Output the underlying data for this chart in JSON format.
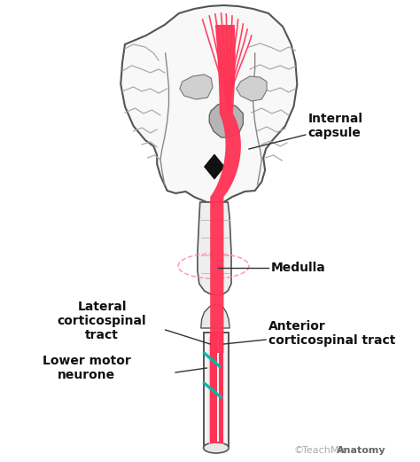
{
  "bg_color": "#ffffff",
  "fig_width": 4.74,
  "fig_height": 5.21,
  "dpi": 100,
  "labels": {
    "internal_capsule": "Internal\ncapsule",
    "medulla": "Medulla",
    "lateral_corticospinal": "Lateral\ncorticospinal\ntract",
    "anterior_corticospinal": "Anterior\ncorticospinal tract",
    "lower_motor_neurone": "Lower motor\nneurone"
  },
  "colors": {
    "red_tract": "#FF3355",
    "outline": "#555555",
    "brain_fill": "#f8f8f8",
    "sulci": "#aaaaaa",
    "teal": "#00BBAA",
    "dashed_pink": "#FF88AA",
    "watermark_gray": "#aaaaaa",
    "dark": "#111111",
    "ventricle": "#d0d0d0",
    "brainstem_fill": "#eeeeee"
  },
  "watermark_copyright": "©"
}
